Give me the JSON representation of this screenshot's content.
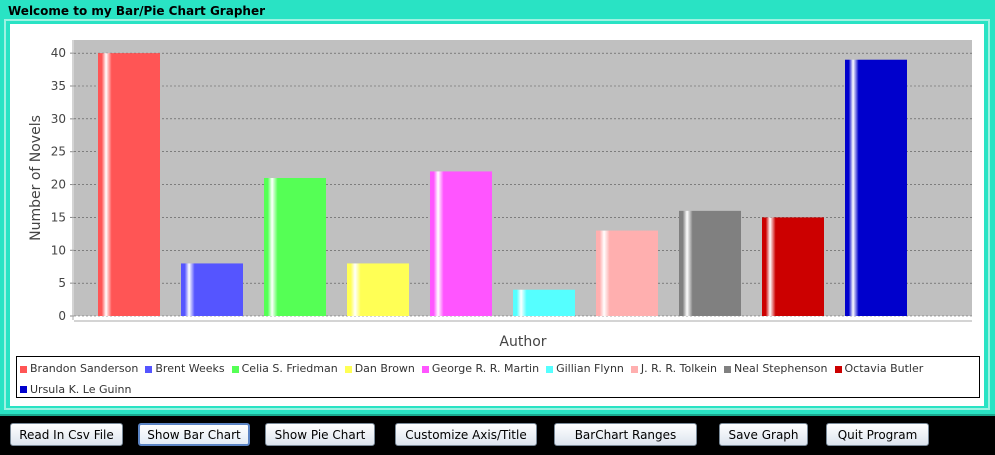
{
  "window": {
    "title": "Welcome to my Bar/Pie Chart Grapher"
  },
  "chart_data": {
    "type": "bar",
    "categories": [
      "Brandon Sanderson",
      "Brent Weeks",
      "Celia S. Friedman",
      "Dan Brown",
      "George R. R. Martin",
      "Gillian Flynn",
      "J. R. R. Tolkein",
      "Neal Stephenson",
      "Octavia Butler",
      "Ursula K. Le Guinn"
    ],
    "values": [
      40,
      8,
      21,
      8,
      22,
      4,
      13,
      16,
      15,
      39
    ],
    "colors": [
      "#ff5555",
      "#5555ff",
      "#55ff55",
      "#ffff55",
      "#ff55ff",
      "#55ffff",
      "#ffafaf",
      "#808080",
      "#cc0000",
      "#0000cc"
    ],
    "xlabel": "Author",
    "ylabel": "Number of Novels",
    "ylim": [
      0,
      42
    ],
    "yticks": [
      0,
      5,
      10,
      15,
      20,
      25,
      30,
      35,
      40
    ],
    "grid": true,
    "legend": "bottom"
  },
  "buttons": {
    "read_csv": "Read In Csv File",
    "show_bar": "Show Bar Chart",
    "show_pie": "Show Pie Chart",
    "customize": "Customize Axis/Title",
    "ranges": "BarChart  Ranges",
    "save": "Save Graph",
    "quit": "Quit Program"
  }
}
